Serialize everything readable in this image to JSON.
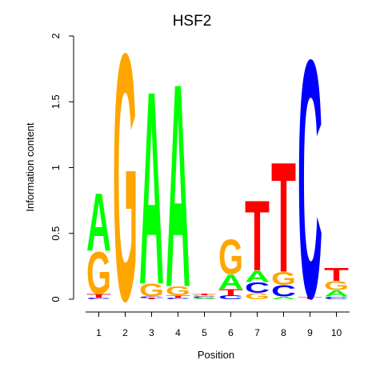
{
  "chart_data": {
    "type": "sequence-logo",
    "title": "HSF2",
    "xlabel": "Position",
    "ylabel": "Information content",
    "ylim": [
      0,
      2
    ],
    "yticks": [
      0,
      0.5,
      1,
      1.5,
      2
    ],
    "ytick_labels": [
      "0",
      "0.5",
      "1",
      "1.5",
      "2"
    ],
    "xtick_labels": [
      "1",
      "2",
      "3",
      "4",
      "5",
      "6",
      "7",
      "8",
      "9",
      "10"
    ],
    "colors": {
      "A": "#00ff00",
      "C": "#0000ff",
      "G": "#ffa500",
      "T": "#ff0000"
    },
    "positions": [
      {
        "pos": "1",
        "letters": [
          {
            "base": "C",
            "height": 0.01
          },
          {
            "base": "T",
            "height": 0.03
          },
          {
            "base": "G",
            "height": 0.33
          },
          {
            "base": "A",
            "height": 0.45
          }
        ]
      },
      {
        "pos": "2",
        "letters": [
          {
            "base": "G",
            "height": 1.93
          }
        ]
      },
      {
        "pos": "3",
        "letters": [
          {
            "base": "T",
            "height": 0.01
          },
          {
            "base": "C",
            "height": 0.01
          },
          {
            "base": "G",
            "height": 0.1
          },
          {
            "base": "A",
            "height": 1.51
          }
        ]
      },
      {
        "pos": "4",
        "letters": [
          {
            "base": "C",
            "height": 0.01
          },
          {
            "base": "T",
            "height": 0.02
          },
          {
            "base": "G",
            "height": 0.07
          },
          {
            "base": "A",
            "height": 1.59
          }
        ]
      },
      {
        "pos": "5",
        "letters": [
          {
            "base": "A",
            "height": 0.01
          },
          {
            "base": "C",
            "height": 0.01
          },
          {
            "base": "G",
            "height": 0.01
          },
          {
            "base": "T",
            "height": 0.01
          }
        ]
      },
      {
        "pos": "6",
        "letters": [
          {
            "base": "C",
            "height": 0.03
          },
          {
            "base": "T",
            "height": 0.05
          },
          {
            "base": "A",
            "height": 0.11
          },
          {
            "base": "G",
            "height": 0.27
          }
        ]
      },
      {
        "pos": "7",
        "letters": [
          {
            "base": "G",
            "height": 0.05
          },
          {
            "base": "C",
            "height": 0.08
          },
          {
            "base": "A",
            "height": 0.09
          },
          {
            "base": "T",
            "height": 0.55
          }
        ]
      },
      {
        "pos": "8",
        "letters": [
          {
            "base": "A",
            "height": 0.02
          },
          {
            "base": "C",
            "height": 0.09
          },
          {
            "base": "G",
            "height": 0.1
          },
          {
            "base": "T",
            "height": 0.86
          }
        ]
      },
      {
        "pos": "9",
        "letters": [
          {
            "base": "T",
            "height": 0.02
          },
          {
            "base": "C",
            "height": 1.86
          }
        ]
      },
      {
        "pos": "10",
        "letters": [
          {
            "base": "C",
            "height": 0.02
          },
          {
            "base": "A",
            "height": 0.05
          },
          {
            "base": "G",
            "height": 0.07
          },
          {
            "base": "T",
            "height": 0.1
          }
        ]
      }
    ]
  }
}
